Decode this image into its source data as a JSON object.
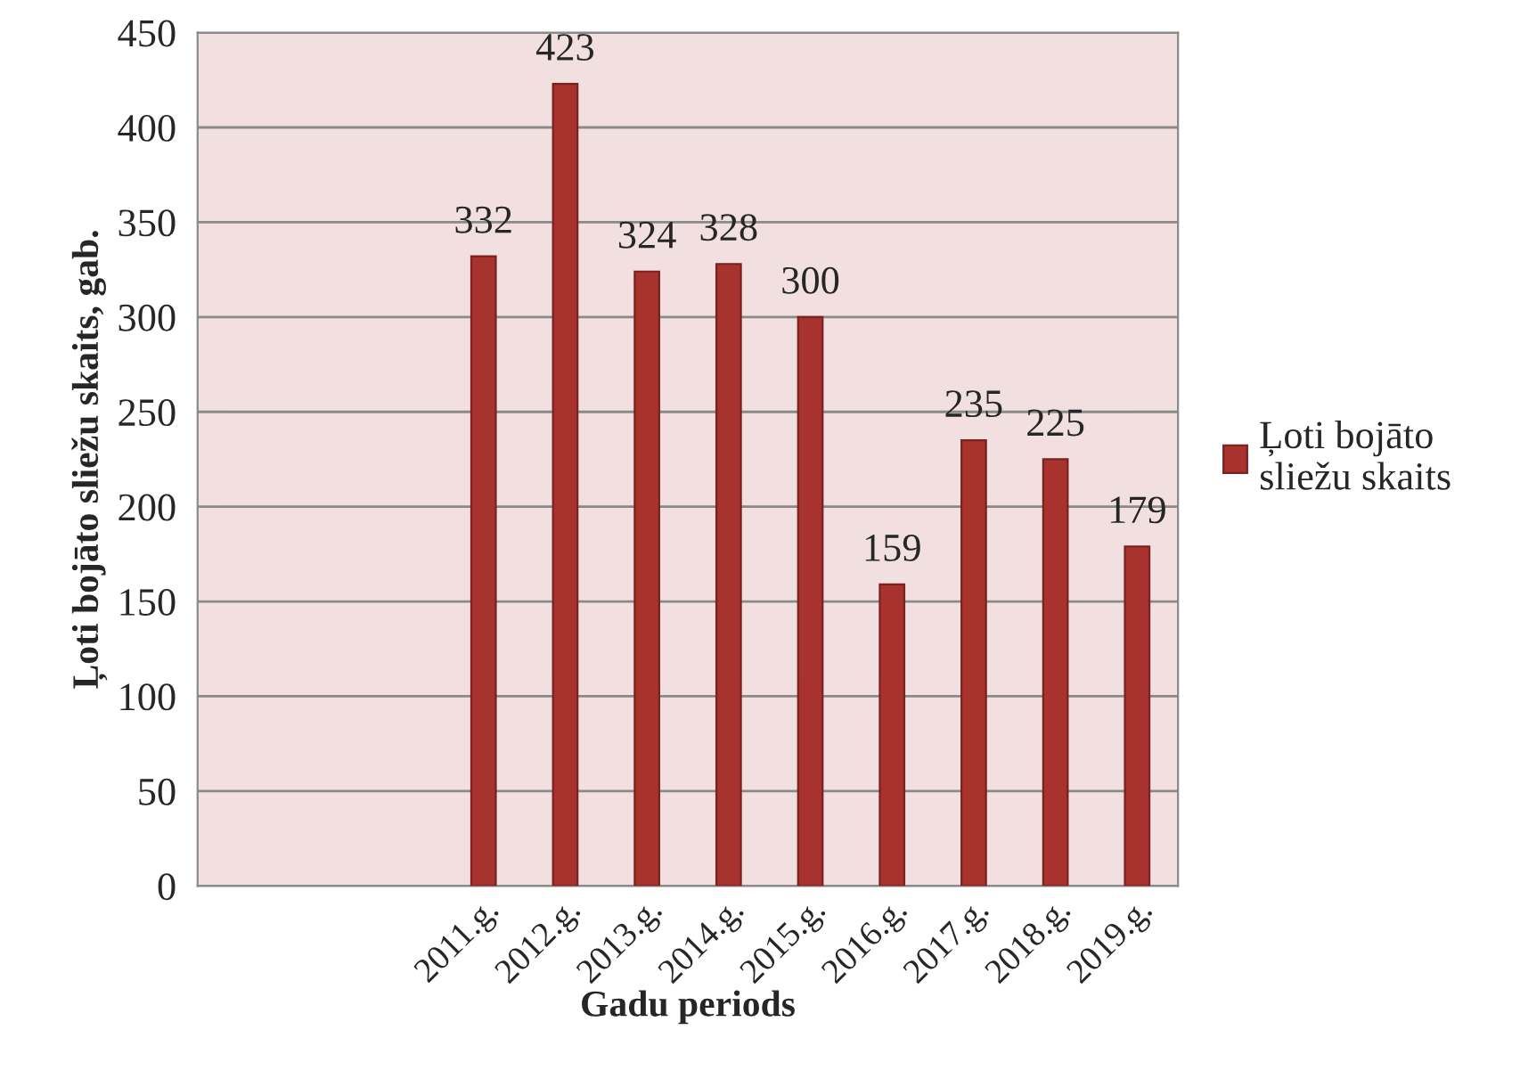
{
  "chart_data": {
    "type": "bar",
    "xlabel": "Gadu periods",
    "ylabel": "Ļoti bojāto sliežu skaits, gab.",
    "categories": [
      null,
      null,
      null,
      "2011.g.",
      "2012.g.",
      "2013.g.",
      "2014.g.",
      "2015.g.",
      "2016.g.",
      "2017.g.",
      "2018.g.",
      "2019.g."
    ],
    "series": [
      {
        "name": "Ļoti bojāto sliežu skaits",
        "color": "#a8322e",
        "values": [
          null,
          null,
          null,
          332,
          423,
          324,
          328,
          300,
          159,
          235,
          225,
          179
        ]
      }
    ],
    "ylim": [
      0,
      450
    ],
    "yticks": [
      0,
      50,
      100,
      150,
      200,
      250,
      300,
      350,
      400,
      450
    ],
    "grid": "y",
    "legend": "right",
    "data_labels": true
  }
}
